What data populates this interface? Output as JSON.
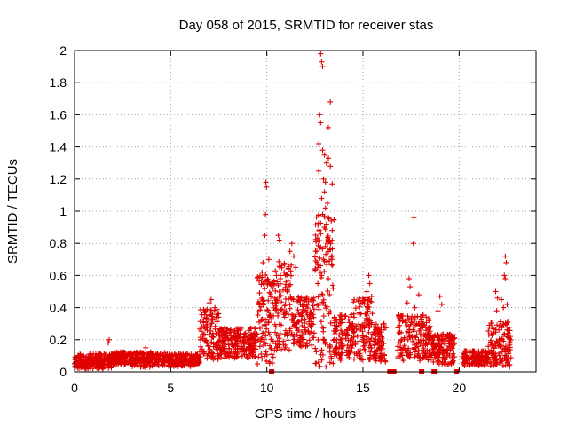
{
  "chart_data": {
    "type": "scatter",
    "title": "Day 058 of 2015, SRMTID for receiver stas",
    "xlabel": "GPS time / hours",
    "ylabel": "SRMTID / TECUs",
    "xlim": [
      0,
      24
    ],
    "ylim": [
      0,
      2
    ],
    "xticks": [
      0,
      5,
      10,
      15,
      20
    ],
    "yticks": [
      0,
      0.2,
      0.4,
      0.6,
      0.8,
      1,
      1.2,
      1.4,
      1.6,
      1.8,
      2
    ],
    "xtick_labels": [
      "0",
      "5",
      "10",
      "15",
      "20"
    ],
    "ytick_labels": [
      "0",
      "0.2",
      "0.4",
      "0.6",
      "0.8",
      "1",
      "1.2",
      "1.4",
      "1.6",
      "1.8",
      "2"
    ],
    "grid": true,
    "marker": "plus",
    "series_color": "#e00000",
    "segments": [
      {
        "x0": 0.0,
        "x1": 2.0,
        "base": 0.06,
        "spread": 0.06
      },
      {
        "x0": 2.0,
        "x1": 3.0,
        "base": 0.08,
        "spread": 0.05
      },
      {
        "x0": 3.0,
        "x1": 4.0,
        "base": 0.07,
        "spread": 0.06
      },
      {
        "x0": 4.0,
        "x1": 6.5,
        "base": 0.07,
        "spread": 0.05
      },
      {
        "x0": 6.5,
        "x1": 7.5,
        "base": 0.22,
        "spread": 0.2
      },
      {
        "x0": 7.5,
        "x1": 9.5,
        "base": 0.17,
        "spread": 0.12
      },
      {
        "x0": 9.5,
        "x1": 10.4,
        "base": 0.3,
        "spread": 0.35
      },
      {
        "x0": 10.4,
        "x1": 11.3,
        "base": 0.38,
        "spread": 0.35
      },
      {
        "x0": 11.3,
        "x1": 12.5,
        "base": 0.3,
        "spread": 0.2
      },
      {
        "x0": 12.5,
        "x1": 13.5,
        "base": 0.45,
        "spread": 0.6
      },
      {
        "x0": 13.5,
        "x1": 14.5,
        "base": 0.2,
        "spread": 0.18
      },
      {
        "x0": 14.5,
        "x1": 15.5,
        "base": 0.25,
        "spread": 0.25
      },
      {
        "x0": 15.5,
        "x1": 16.2,
        "base": 0.17,
        "spread": 0.15
      },
      {
        "x0": 16.8,
        "x1": 18.5,
        "base": 0.2,
        "spread": 0.18
      },
      {
        "x0": 18.5,
        "x1": 19.8,
        "base": 0.13,
        "spread": 0.12
      },
      {
        "x0": 20.2,
        "x1": 21.5,
        "base": 0.08,
        "spread": 0.06
      },
      {
        "x0": 21.5,
        "x1": 22.7,
        "base": 0.16,
        "spread": 0.18
      }
    ],
    "peaks": [
      {
        "x": 9.95,
        "y": 1.18
      },
      {
        "x": 9.98,
        "y": 1.15
      },
      {
        "x": 9.93,
        "y": 0.98
      },
      {
        "x": 9.9,
        "y": 0.85
      },
      {
        "x": 9.8,
        "y": 0.68
      },
      {
        "x": 9.75,
        "y": 0.62
      },
      {
        "x": 10.1,
        "y": 0.7
      },
      {
        "x": 10.6,
        "y": 0.85
      },
      {
        "x": 10.65,
        "y": 0.82
      },
      {
        "x": 10.5,
        "y": 0.6
      },
      {
        "x": 10.7,
        "y": 0.58
      },
      {
        "x": 10.9,
        "y": 0.62
      },
      {
        "x": 11.0,
        "y": 0.56
      },
      {
        "x": 10.3,
        "y": 0.52
      },
      {
        "x": 11.3,
        "y": 0.8
      },
      {
        "x": 11.4,
        "y": 0.72
      },
      {
        "x": 11.5,
        "y": 0.65
      },
      {
        "x": 11.2,
        "y": 0.75
      },
      {
        "x": 7.0,
        "y": 0.43
      },
      {
        "x": 7.1,
        "y": 0.45
      },
      {
        "x": 7.3,
        "y": 0.4
      },
      {
        "x": 6.8,
        "y": 0.38
      },
      {
        "x": 12.8,
        "y": 1.98
      },
      {
        "x": 12.85,
        "y": 1.93
      },
      {
        "x": 12.9,
        "y": 1.9
      },
      {
        "x": 13.3,
        "y": 1.68
      },
      {
        "x": 12.75,
        "y": 1.6
      },
      {
        "x": 12.8,
        "y": 1.55
      },
      {
        "x": 13.2,
        "y": 1.52
      },
      {
        "x": 12.7,
        "y": 1.42
      },
      {
        "x": 12.9,
        "y": 1.38
      },
      {
        "x": 13.0,
        "y": 1.35
      },
      {
        "x": 13.2,
        "y": 1.33
      },
      {
        "x": 13.1,
        "y": 1.3
      },
      {
        "x": 13.3,
        "y": 1.28
      },
      {
        "x": 12.7,
        "y": 1.25
      },
      {
        "x": 12.95,
        "y": 1.2
      },
      {
        "x": 13.05,
        "y": 1.18
      },
      {
        "x": 13.4,
        "y": 1.17
      },
      {
        "x": 13.0,
        "y": 1.12
      },
      {
        "x": 12.85,
        "y": 1.08
      },
      {
        "x": 13.15,
        "y": 1.05
      },
      {
        "x": 13.05,
        "y": 1.02
      },
      {
        "x": 12.9,
        "y": 0.98
      },
      {
        "x": 13.2,
        "y": 0.96
      },
      {
        "x": 13.35,
        "y": 0.94
      },
      {
        "x": 13.1,
        "y": 0.92
      },
      {
        "x": 13.0,
        "y": 0.9
      },
      {
        "x": 13.4,
        "y": 0.88
      },
      {
        "x": 12.8,
        "y": 0.86
      },
      {
        "x": 13.25,
        "y": 0.82
      },
      {
        "x": 13.15,
        "y": 0.8
      },
      {
        "x": 13.05,
        "y": 0.78
      },
      {
        "x": 13.3,
        "y": 0.76
      },
      {
        "x": 12.6,
        "y": 0.75
      },
      {
        "x": 12.95,
        "y": 0.7
      },
      {
        "x": 12.7,
        "y": 0.65
      },
      {
        "x": 12.85,
        "y": 0.6
      },
      {
        "x": 13.2,
        "y": 0.58
      },
      {
        "x": 12.65,
        "y": 0.55
      },
      {
        "x": 13.45,
        "y": 0.52
      },
      {
        "x": 15.3,
        "y": 0.6
      },
      {
        "x": 15.35,
        "y": 0.55
      },
      {
        "x": 15.2,
        "y": 0.5
      },
      {
        "x": 15.45,
        "y": 0.47
      },
      {
        "x": 15.1,
        "y": 0.45
      },
      {
        "x": 15.25,
        "y": 0.42
      },
      {
        "x": 17.65,
        "y": 0.96
      },
      {
        "x": 17.62,
        "y": 0.8
      },
      {
        "x": 17.4,
        "y": 0.58
      },
      {
        "x": 17.45,
        "y": 0.53
      },
      {
        "x": 17.9,
        "y": 0.48
      },
      {
        "x": 17.3,
        "y": 0.43
      },
      {
        "x": 17.7,
        "y": 0.4
      },
      {
        "x": 19.0,
        "y": 0.47
      },
      {
        "x": 19.1,
        "y": 0.42
      },
      {
        "x": 18.9,
        "y": 0.38
      },
      {
        "x": 22.4,
        "y": 0.72
      },
      {
        "x": 22.45,
        "y": 0.68
      },
      {
        "x": 22.35,
        "y": 0.6
      },
      {
        "x": 22.4,
        "y": 0.58
      },
      {
        "x": 21.9,
        "y": 0.5
      },
      {
        "x": 22.0,
        "y": 0.46
      },
      {
        "x": 22.2,
        "y": 0.45
      },
      {
        "x": 22.5,
        "y": 0.42
      },
      {
        "x": 22.3,
        "y": 0.4
      },
      {
        "x": 21.95,
        "y": 0.38
      },
      {
        "x": 1.8,
        "y": 0.2
      },
      {
        "x": 1.75,
        "y": 0.18
      },
      {
        "x": 3.7,
        "y": 0.15
      },
      {
        "x": 4.7,
        "y": 0.12
      }
    ],
    "gap_markers": [
      10.25,
      16.4,
      16.6,
      18.05,
      18.7,
      19.85
    ]
  }
}
